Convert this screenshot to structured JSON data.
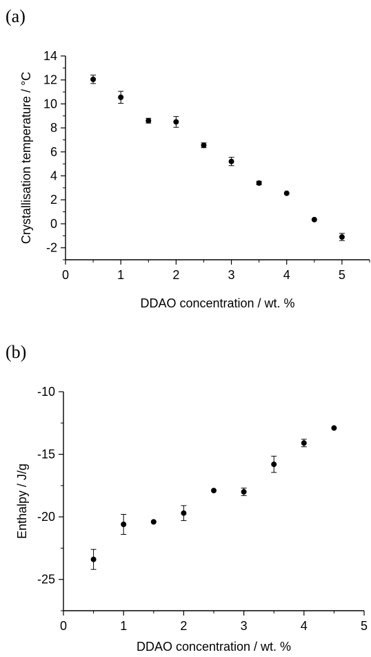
{
  "chart_data": [
    {
      "type": "scatter",
      "panel_label": "(a)",
      "xlabel": "DDAO concentration / wt. %",
      "ylabel": "Crystallisation temperature / °C",
      "xlim": [
        0,
        5.5
      ],
      "ylim": [
        -3,
        14
      ],
      "xticks": [
        0,
        1,
        2,
        3,
        4,
        5
      ],
      "yticks": [
        -2,
        0,
        2,
        4,
        6,
        8,
        10,
        12,
        14
      ],
      "grid": false,
      "error_bars": true,
      "points": [
        {
          "x": 0.5,
          "y": 12.05,
          "err": 0.35
        },
        {
          "x": 1.0,
          "y": 10.55,
          "err": 0.5
        },
        {
          "x": 1.5,
          "y": 8.6,
          "err": 0.2
        },
        {
          "x": 2.0,
          "y": 8.5,
          "err": 0.45
        },
        {
          "x": 2.5,
          "y": 6.55,
          "err": 0.2
        },
        {
          "x": 3.0,
          "y": 5.2,
          "err": 0.35
        },
        {
          "x": 3.5,
          "y": 3.4,
          "err": 0.15
        },
        {
          "x": 4.0,
          "y": 2.55,
          "err": 0.0
        },
        {
          "x": 4.5,
          "y": 0.35,
          "err": 0.0
        },
        {
          "x": 5.0,
          "y": -1.1,
          "err": 0.3
        }
      ]
    },
    {
      "type": "scatter",
      "panel_label": "(b)",
      "xlabel": "DDAO concentration / wt. %",
      "ylabel": "Enthalpy / J/g",
      "xlim": [
        0,
        5
      ],
      "ylim": [
        -27.5,
        -10
      ],
      "xticks": [
        0,
        1,
        2,
        3,
        4,
        5
      ],
      "yticks": [
        -25,
        -20,
        -15,
        -10
      ],
      "grid": false,
      "error_bars": true,
      "points": [
        {
          "x": 0.5,
          "y": -23.4,
          "err": 0.8
        },
        {
          "x": 1.0,
          "y": -20.6,
          "err": 0.8
        },
        {
          "x": 1.5,
          "y": -20.4,
          "err": 0.0
        },
        {
          "x": 2.0,
          "y": -19.7,
          "err": 0.6
        },
        {
          "x": 2.5,
          "y": -17.9,
          "err": 0.0
        },
        {
          "x": 3.0,
          "y": -18.0,
          "err": 0.3
        },
        {
          "x": 3.5,
          "y": -15.8,
          "err": 0.65
        },
        {
          "x": 4.0,
          "y": -14.1,
          "err": 0.3
        },
        {
          "x": 4.5,
          "y": -12.9,
          "err": 0.0
        }
      ]
    }
  ]
}
